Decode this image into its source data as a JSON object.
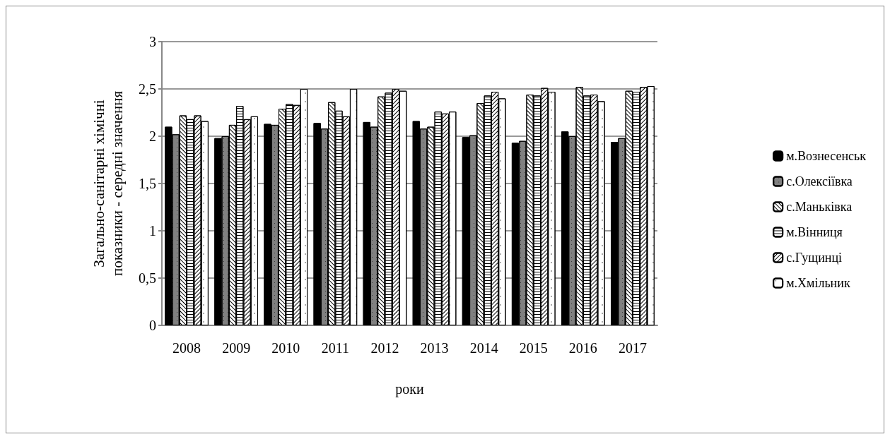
{
  "chart_data": {
    "type": "bar",
    "xlabel": "роки",
    "ylabel": "Загально-санітарні хімічні показники - середні значення",
    "categories": [
      "2008",
      "2009",
      "2010",
      "2011",
      "2012",
      "2013",
      "2014",
      "2015",
      "2016",
      "2017"
    ],
    "series": [
      {
        "name": "м.Вознесенськ",
        "color": "#000000",
        "values": [
          2.1,
          1.98,
          2.13,
          2.14,
          2.15,
          2.16,
          1.99,
          1.93,
          2.05,
          1.94
        ]
      },
      {
        "name": "с.Олексіївка",
        "color": "#808080",
        "values": [
          2.02,
          2.0,
          2.12,
          2.08,
          2.1,
          2.08,
          2.01,
          1.95,
          2.0,
          1.98
        ]
      },
      {
        "name": "с.Маньківка",
        "color": "#ffffff",
        "values": [
          2.22,
          2.12,
          2.29,
          2.36,
          2.42,
          2.1,
          2.35,
          2.44,
          2.52,
          2.48
        ]
      },
      {
        "name": "м.Вінниця",
        "color": "#ffffff",
        "values": [
          2.18,
          2.32,
          2.34,
          2.27,
          2.46,
          2.26,
          2.43,
          2.43,
          2.43,
          2.47
        ]
      },
      {
        "name": "с.Гущинці",
        "color": "#ffffff",
        "values": [
          2.22,
          2.18,
          2.33,
          2.21,
          2.5,
          2.24,
          2.47,
          2.51,
          2.44,
          2.52
        ]
      },
      {
        "name": "м.Хмільник",
        "color": "#ffffff",
        "values": [
          2.16,
          2.21,
          2.5,
          2.5,
          2.48,
          2.26,
          2.4,
          2.47,
          2.37,
          2.53
        ]
      }
    ],
    "ylim": [
      0,
      3
    ],
    "yticks": [
      0,
      {
        "value": 0.5,
        "label": "0,5"
      },
      1,
      {
        "value": 1.5,
        "label": "1,5"
      },
      2,
      {
        "value": 2.5,
        "label": "2,5"
      },
      3
    ],
    "grid": "y",
    "legend": "right"
  }
}
